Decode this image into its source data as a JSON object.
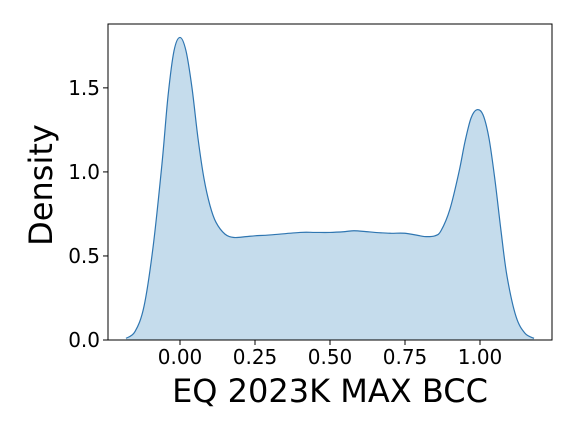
{
  "chart_data": {
    "type": "area",
    "title": "",
    "xlabel": "EQ 2023K MAX BCC",
    "ylabel": "Density",
    "xlim": [
      -0.24,
      1.24
    ],
    "ylim": [
      0.0,
      1.88
    ],
    "xticks": [
      0.0,
      0.25,
      0.5,
      0.75,
      1.0
    ],
    "xtick_labels": [
      "0.00",
      "0.25",
      "0.50",
      "0.75",
      "1.00"
    ],
    "yticks": [
      0.0,
      0.5,
      1.0,
      1.5
    ],
    "ytick_labels": [
      "0.0",
      "0.5",
      "1.0",
      "1.5"
    ],
    "grid": false,
    "colors": {
      "line": "#2f76b1",
      "fill": "#c5dcec",
      "axes": "#000000"
    },
    "series": [
      {
        "x": [
          -0.18,
          -0.15,
          -0.12,
          -0.09,
          -0.06,
          -0.04,
          -0.02,
          0.0,
          0.02,
          0.04,
          0.06,
          0.08,
          0.1,
          0.12,
          0.15,
          0.18,
          0.22,
          0.25,
          0.3,
          0.4,
          0.45,
          0.5,
          0.55,
          0.58,
          0.62,
          0.65,
          0.7,
          0.75,
          0.8,
          0.82,
          0.85,
          0.87,
          0.9,
          0.93,
          0.95,
          0.97,
          0.99,
          1.01,
          1.03,
          1.05,
          1.07,
          1.09,
          1.12,
          1.15,
          1.18
        ],
        "y": [
          0.01,
          0.05,
          0.2,
          0.55,
          1.05,
          1.45,
          1.72,
          1.8,
          1.72,
          1.5,
          1.2,
          0.96,
          0.8,
          0.7,
          0.63,
          0.61,
          0.615,
          0.62,
          0.625,
          0.64,
          0.64,
          0.64,
          0.645,
          0.65,
          0.645,
          0.64,
          0.635,
          0.635,
          0.62,
          0.615,
          0.62,
          0.65,
          0.78,
          1.0,
          1.18,
          1.32,
          1.37,
          1.34,
          1.2,
          0.95,
          0.65,
          0.38,
          0.14,
          0.04,
          0.01
        ]
      }
    ]
  }
}
